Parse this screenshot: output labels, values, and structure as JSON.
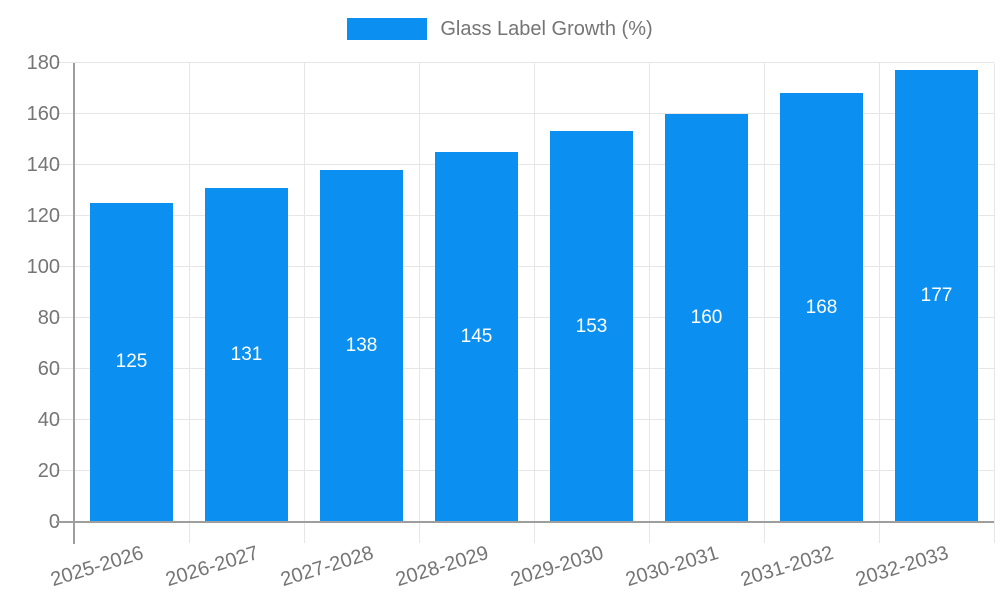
{
  "chart_data": {
    "type": "bar",
    "title": "Glass Label Growth (%)",
    "legend_label": "Glass Label Growth (%)",
    "legend_position": "top",
    "categories": [
      "2025-2026",
      "2026-2027",
      "2027-2028",
      "2028-2029",
      "2029-2030",
      "2030-2031",
      "2031-2032",
      "2032-2033"
    ],
    "series": [
      {
        "name": "Glass Label Growth (%)",
        "values": [
          125,
          131,
          138,
          145,
          153,
          160,
          168,
          177
        ]
      }
    ],
    "values": [
      125,
      131,
      138,
      145,
      153,
      160,
      168,
      177
    ],
    "value_labels": [
      "125",
      "131",
      "138",
      "145",
      "153",
      "160",
      "168",
      "177"
    ],
    "xlabel": "",
    "ylabel": "",
    "ylim": [
      0,
      180
    ],
    "yticks": [
      0,
      20,
      40,
      60,
      80,
      100,
      120,
      140,
      160,
      180
    ],
    "grid": true,
    "bar_color": "#0B90F2",
    "value_label_color": "#FFFFFF",
    "grid_color": "#E6E6E6",
    "axis_color": "#9E9E9E",
    "text_color": "#757575"
  }
}
